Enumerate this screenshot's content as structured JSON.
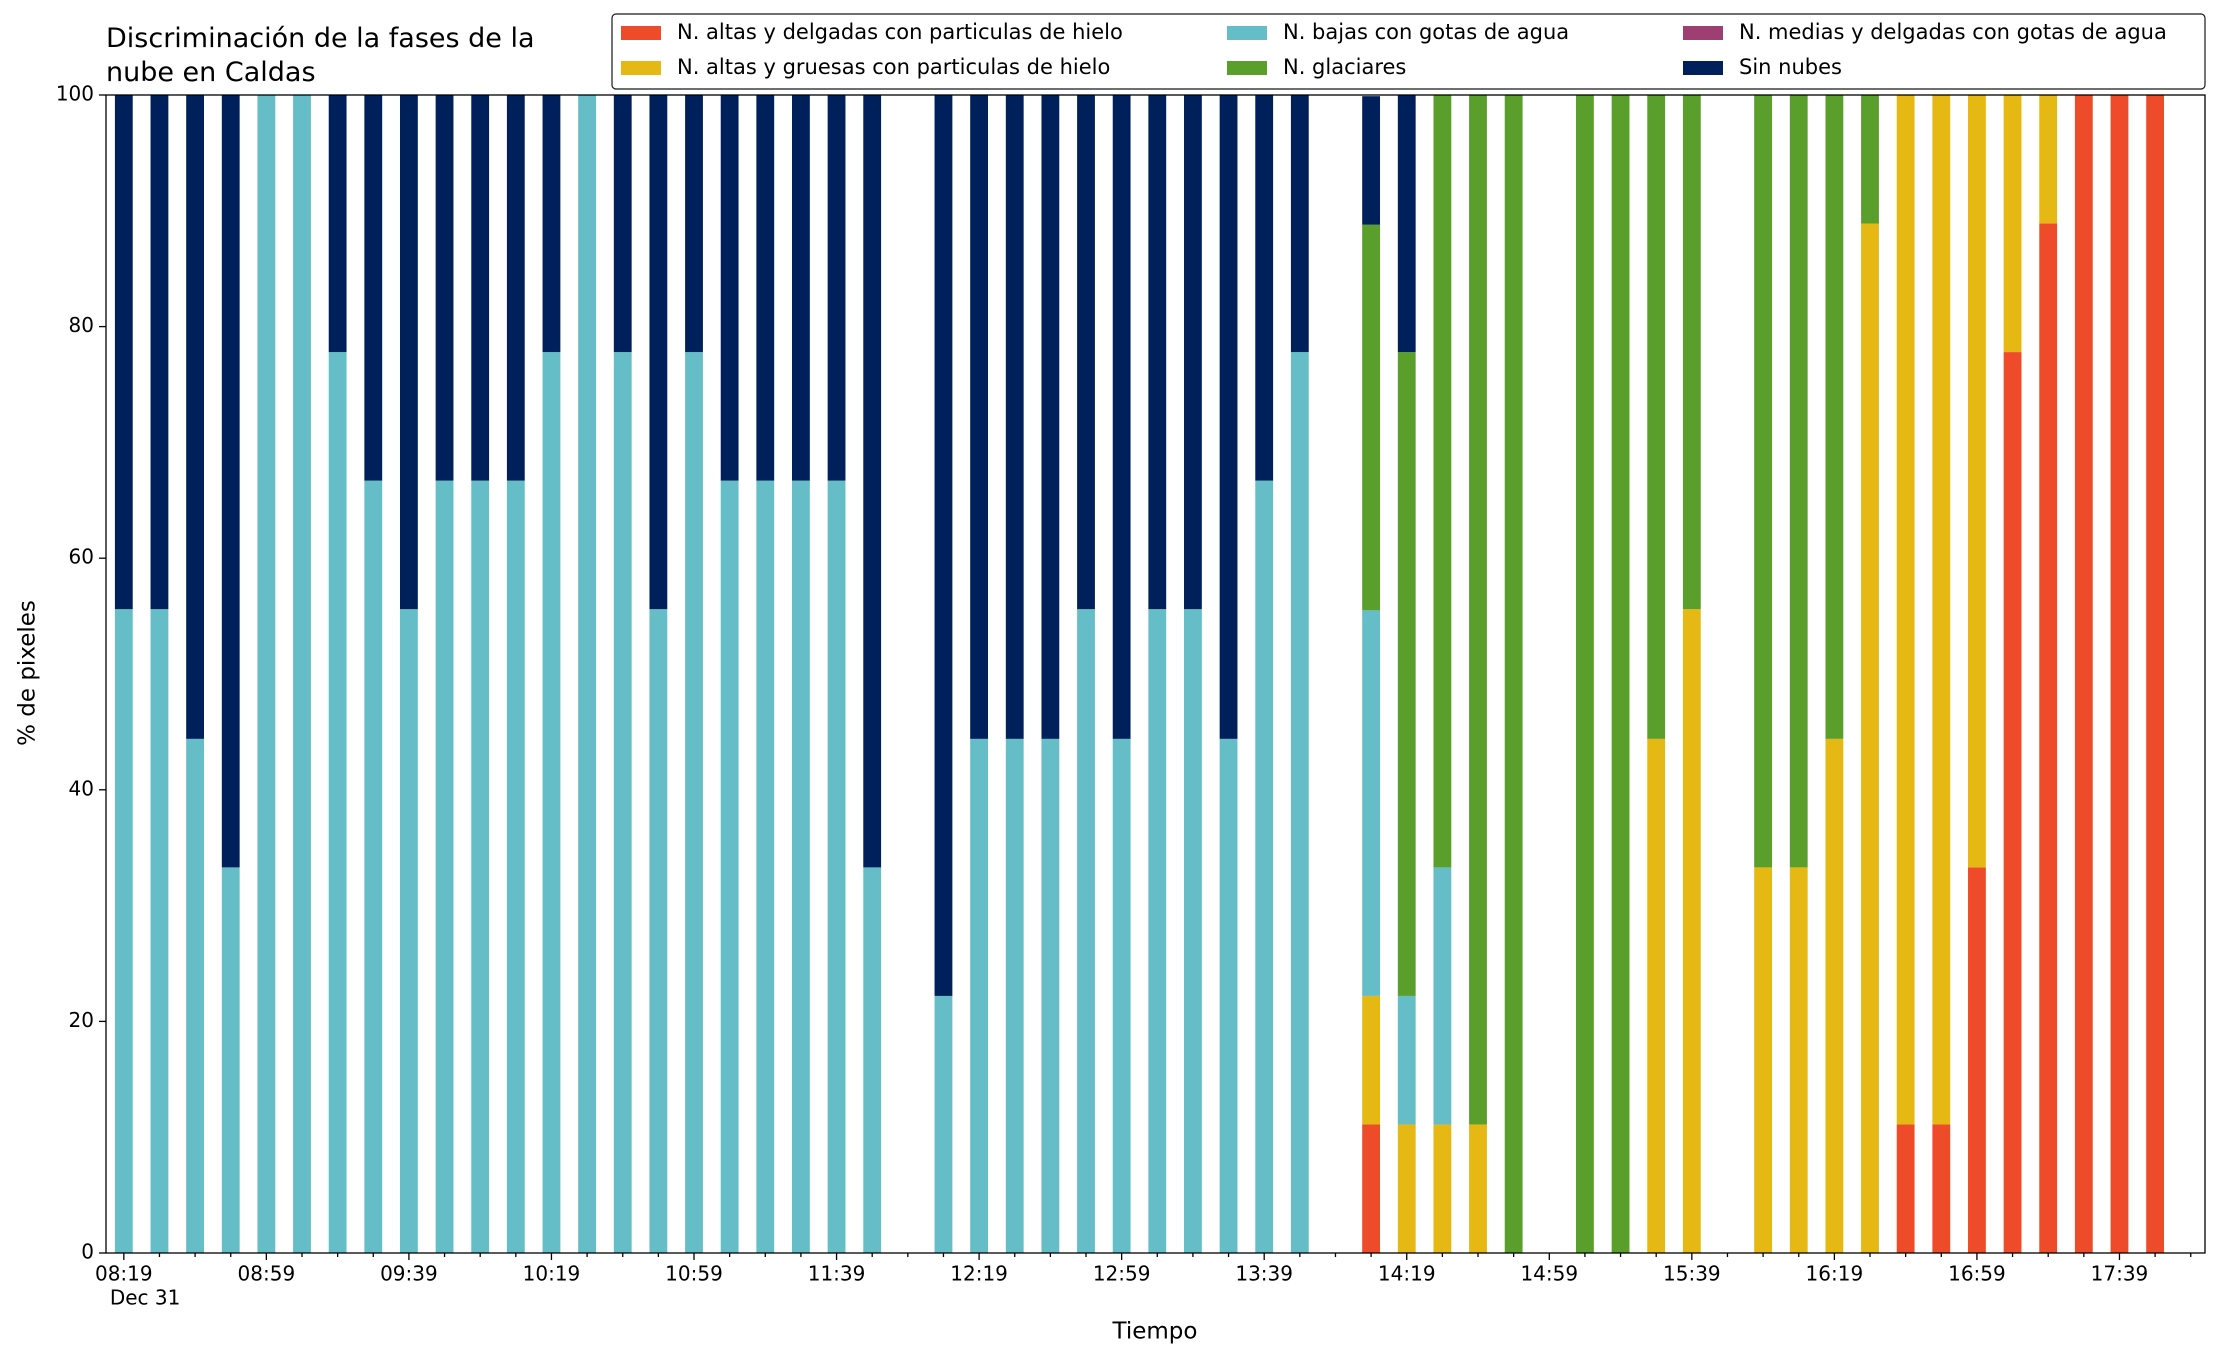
{
  "chart_data": {
    "type": "stacked_bar",
    "title": "Discriminación de la fases de la nube en Caldas",
    "x_label": "Tiempo",
    "y_label": "% de pixeles",
    "x_date_label": "Dec 31",
    "categories": [
      "08:19",
      null,
      null,
      null,
      "08:59",
      null,
      null,
      null,
      "09:39",
      null,
      null,
      null,
      "10:19",
      null,
      null,
      null,
      "10:59",
      null,
      null,
      null,
      "11:39",
      null,
      null,
      null,
      "12:19",
      null,
      null,
      null,
      "12:59",
      null,
      null,
      null,
      "13:39",
      null,
      null,
      null,
      "14:19",
      null,
      null,
      null,
      "14:59",
      null,
      null,
      null,
      "15:39",
      null,
      null,
      null,
      "16:19",
      null,
      null,
      null,
      "16:59",
      null,
      null,
      null,
      "17:39",
      null,
      null
    ],
    "series": [
      {
        "name": "N. altas y delgadas con particulas de hielo",
        "color": "#ee4b2b",
        "values": [
          0,
          0,
          0,
          0,
          0,
          0,
          0,
          0,
          0,
          0,
          0,
          0,
          0,
          0,
          0,
          0,
          0,
          0,
          0,
          0,
          0,
          0,
          null,
          0,
          0,
          0,
          0,
          0,
          0,
          0,
          0,
          0,
          0,
          0,
          null,
          11.1,
          0,
          0,
          0,
          0,
          null,
          0,
          0,
          0,
          0,
          null,
          0,
          0,
          0,
          0,
          11.1,
          11.1,
          33.3,
          77.8,
          88.9,
          100,
          100,
          100,
          null
        ]
      },
      {
        "name": "N. altas y gruesas con particulas de hielo",
        "color": "#e5b814",
        "values": [
          0,
          0,
          0,
          0,
          0,
          0,
          0,
          0,
          0,
          0,
          0,
          0,
          0,
          0,
          0,
          0,
          0,
          0,
          0,
          0,
          0,
          0,
          null,
          0,
          0,
          0,
          0,
          0,
          0,
          0,
          0,
          0,
          0,
          0,
          null,
          11.1,
          11.1,
          11.1,
          11.1,
          0,
          null,
          0,
          0,
          44.4,
          55.6,
          null,
          33.3,
          33.3,
          44.4,
          88.9,
          88.9,
          88.9,
          66.7,
          22.2,
          11.1,
          0,
          0,
          0,
          null
        ]
      },
      {
        "name": "N. bajas con gotas de agua",
        "color": "#65bdc8",
        "values": [
          55.6,
          55.6,
          44.4,
          33.3,
          100,
          100,
          77.8,
          66.7,
          55.6,
          66.7,
          66.7,
          66.7,
          77.8,
          100,
          77.8,
          55.6,
          77.8,
          66.7,
          66.7,
          66.7,
          66.7,
          33.3,
          null,
          22.2,
          44.4,
          44.4,
          44.4,
          55.6,
          44.4,
          55.6,
          55.6,
          44.4,
          66.7,
          77.8,
          null,
          33.3,
          11.1,
          22.2,
          0,
          0,
          null,
          0,
          0,
          0,
          0,
          null,
          0,
          0,
          0,
          0,
          0,
          0,
          0,
          0,
          0,
          0,
          0,
          0,
          null
        ]
      },
      {
        "name": "N. glaciares",
        "color": "#5a9e2c",
        "values": [
          0,
          0,
          0,
          0,
          0,
          0,
          0,
          0,
          0,
          0,
          0,
          0,
          0,
          0,
          0,
          0,
          0,
          0,
          0,
          0,
          0,
          0,
          null,
          0,
          0,
          0,
          0,
          0,
          0,
          0,
          0,
          0,
          0,
          0,
          null,
          33.3,
          55.6,
          66.7,
          88.9,
          100,
          null,
          100,
          100,
          55.6,
          44.4,
          null,
          66.7,
          66.7,
          55.6,
          11.1,
          0,
          0,
          0,
          0,
          0,
          0,
          0,
          0,
          null
        ]
      },
      {
        "name": "N. medias y delgadas con gotas de agua",
        "color": "#9e3f72",
        "values": [
          0,
          0,
          0,
          0,
          0,
          0,
          0,
          0,
          0,
          0,
          0,
          0,
          0,
          0,
          0,
          0,
          0,
          0,
          0,
          0,
          0,
          0,
          null,
          0,
          0,
          0,
          0,
          0,
          0,
          0,
          0,
          0,
          0,
          0,
          null,
          0,
          0,
          0,
          0,
          0,
          null,
          0,
          0,
          0,
          0,
          null,
          0,
          0,
          0,
          0,
          0,
          0,
          0,
          0,
          0,
          0,
          0,
          0,
          null
        ]
      },
      {
        "name": "Sin nubes",
        "color": "#00205b",
        "values": [
          44.4,
          44.4,
          55.6,
          66.7,
          0,
          0,
          22.2,
          33.3,
          44.4,
          33.3,
          33.3,
          33.3,
          22.2,
          0,
          22.2,
          44.4,
          22.2,
          33.3,
          33.3,
          33.3,
          33.3,
          66.7,
          null,
          77.8,
          55.6,
          55.6,
          55.6,
          44.4,
          55.6,
          44.4,
          44.4,
          55.6,
          33.3,
          22.2,
          null,
          11.1,
          22.2,
          0,
          0,
          0,
          null,
          0,
          0,
          0,
          0,
          null,
          0,
          0,
          0,
          0,
          0,
          0,
          0,
          0,
          0,
          0,
          0,
          0,
          null
        ]
      }
    ],
    "ylim": [
      0,
      100
    ],
    "yticks": [
      0,
      20,
      40,
      60,
      80,
      100
    ],
    "grid": false,
    "legend": "top-right"
  }
}
